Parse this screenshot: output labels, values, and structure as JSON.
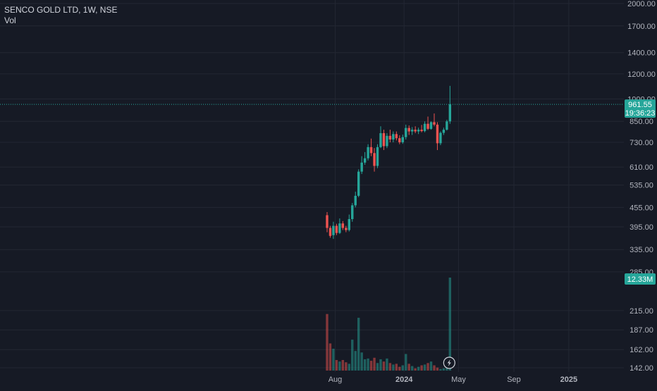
{
  "chart_data": {
    "type": "candlestick",
    "title": "SENCO GOLD LTD, 1W, NSE",
    "volume_label": "Vol",
    "scale": "log",
    "ylim": [
      142,
      2000
    ],
    "price_axis_ticks": [
      "2000.00",
      "1700.00",
      "1400.00",
      "1200.00",
      "1000.00",
      "850.00",
      "730.00",
      "610.00",
      "535.00",
      "455.00",
      "395.00",
      "335.00",
      "285.00",
      "215.00",
      "187.00",
      "162.00",
      "142.00"
    ],
    "time_axis_ticks": [
      "Aug",
      "2024",
      "May",
      "Sep",
      "2025"
    ],
    "last_price": "961.55",
    "countdown": "19:36:23",
    "last_volume": "12.33M",
    "grid": true,
    "up_color": "#26a69a",
    "down_color": "#ef5350",
    "candles": [
      {
        "date": "2023-07-14",
        "o": 430,
        "h": 440,
        "l": 380,
        "c": 392
      },
      {
        "date": "2023-07-21",
        "o": 392,
        "h": 398,
        "l": 365,
        "c": 370
      },
      {
        "date": "2023-07-28",
        "o": 372,
        "h": 410,
        "l": 362,
        "c": 398
      },
      {
        "date": "2023-08-04",
        "o": 398,
        "h": 404,
        "l": 372,
        "c": 378
      },
      {
        "date": "2023-08-11",
        "o": 378,
        "h": 420,
        "l": 375,
        "c": 405
      },
      {
        "date": "2023-08-18",
        "o": 405,
        "h": 412,
        "l": 386,
        "c": 392
      },
      {
        "date": "2023-08-25",
        "o": 392,
        "h": 398,
        "l": 380,
        "c": 386
      },
      {
        "date": "2023-09-01",
        "o": 386,
        "h": 432,
        "l": 382,
        "c": 418
      },
      {
        "date": "2023-09-08",
        "o": 418,
        "h": 470,
        "l": 410,
        "c": 462
      },
      {
        "date": "2023-09-15",
        "o": 462,
        "h": 510,
        "l": 455,
        "c": 495
      },
      {
        "date": "2023-09-22",
        "o": 495,
        "h": 600,
        "l": 490,
        "c": 590
      },
      {
        "date": "2023-09-29",
        "o": 590,
        "h": 660,
        "l": 580,
        "c": 630
      },
      {
        "date": "2023-10-06",
        "o": 630,
        "h": 680,
        "l": 620,
        "c": 650
      },
      {
        "date": "2023-10-13",
        "o": 650,
        "h": 720,
        "l": 640,
        "c": 705
      },
      {
        "date": "2023-10-20",
        "o": 705,
        "h": 750,
        "l": 660,
        "c": 675
      },
      {
        "date": "2023-10-27",
        "o": 675,
        "h": 700,
        "l": 590,
        "c": 615
      },
      {
        "date": "2023-11-03",
        "o": 615,
        "h": 720,
        "l": 605,
        "c": 705
      },
      {
        "date": "2023-11-10",
        "o": 705,
        "h": 820,
        "l": 700,
        "c": 780
      },
      {
        "date": "2023-11-17",
        "o": 780,
        "h": 800,
        "l": 690,
        "c": 710
      },
      {
        "date": "2023-11-24",
        "o": 710,
        "h": 780,
        "l": 700,
        "c": 765
      },
      {
        "date": "2023-12-01",
        "o": 765,
        "h": 800,
        "l": 730,
        "c": 745
      },
      {
        "date": "2023-12-08",
        "o": 745,
        "h": 790,
        "l": 730,
        "c": 775
      },
      {
        "date": "2023-12-15",
        "o": 775,
        "h": 790,
        "l": 740,
        "c": 752
      },
      {
        "date": "2023-12-22",
        "o": 752,
        "h": 768,
        "l": 720,
        "c": 730
      },
      {
        "date": "2023-12-29",
        "o": 730,
        "h": 772,
        "l": 722,
        "c": 758
      },
      {
        "date": "2024-01-05",
        "o": 758,
        "h": 830,
        "l": 745,
        "c": 810
      },
      {
        "date": "2024-01-12",
        "o": 810,
        "h": 825,
        "l": 770,
        "c": 790
      },
      {
        "date": "2024-01-19",
        "o": 790,
        "h": 815,
        "l": 770,
        "c": 800
      },
      {
        "date": "2024-01-26",
        "o": 800,
        "h": 820,
        "l": 780,
        "c": 790
      },
      {
        "date": "2024-02-02",
        "o": 790,
        "h": 812,
        "l": 775,
        "c": 800
      },
      {
        "date": "2024-02-09",
        "o": 800,
        "h": 828,
        "l": 785,
        "c": 792
      },
      {
        "date": "2024-02-16",
        "o": 792,
        "h": 850,
        "l": 785,
        "c": 835
      },
      {
        "date": "2024-02-23",
        "o": 835,
        "h": 880,
        "l": 798,
        "c": 805
      },
      {
        "date": "2024-03-01",
        "o": 805,
        "h": 850,
        "l": 800,
        "c": 845
      },
      {
        "date": "2024-03-08",
        "o": 845,
        "h": 900,
        "l": 820,
        "c": 830
      },
      {
        "date": "2024-03-15",
        "o": 830,
        "h": 845,
        "l": 690,
        "c": 725
      },
      {
        "date": "2024-03-22",
        "o": 725,
        "h": 790,
        "l": 715,
        "c": 782
      },
      {
        "date": "2024-03-29",
        "o": 782,
        "h": 812,
        "l": 770,
        "c": 800
      },
      {
        "date": "2024-04-05",
        "o": 800,
        "h": 860,
        "l": 795,
        "c": 850
      },
      {
        "date": "2024-04-12",
        "o": 850,
        "h": 1100,
        "l": 835,
        "c": 961.55
      }
    ],
    "volume": [
      7.5,
      3.6,
      2.9,
      1.4,
      1.2,
      1.4,
      1.1,
      0.9,
      4.1,
      2.6,
      7.0,
      2.4,
      1.5,
      1.6,
      1.3,
      1.7,
      1.0,
      1.5,
      1.2,
      1.6,
      1.0,
      0.8,
      0.9,
      0.5,
      0.7,
      2.2,
      0.9,
      0.6,
      0.3,
      0.5,
      0.7,
      0.8,
      1.0,
      1.2,
      0.7,
      0.4,
      0.2,
      0.3,
      0.5,
      12.33
    ]
  }
}
